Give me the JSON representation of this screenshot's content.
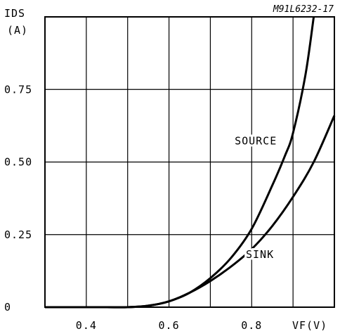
{
  "chart_data": {
    "type": "line",
    "ref_code": "M91L6232-17",
    "ylabel_line1": "IDS",
    "ylabel_line2": "(A)",
    "xlabel": "VF(V)",
    "xlim": [
      0.3,
      1.0
    ],
    "ylim": [
      0,
      1.0
    ],
    "x_gridlines": [
      0.4,
      0.5,
      0.6,
      0.7,
      0.8,
      0.9
    ],
    "y_gridlines": [
      0.25,
      0.5,
      0.75
    ],
    "x_ticks": [
      {
        "value": 0.4,
        "label": "0.4"
      },
      {
        "value": 0.6,
        "label": "0.6"
      },
      {
        "value": 0.8,
        "label": "0.8"
      }
    ],
    "y_ticks": [
      {
        "value": 0,
        "label": "0"
      },
      {
        "value": 0.25,
        "label": "0.25"
      },
      {
        "value": 0.5,
        "label": "0.50"
      },
      {
        "value": 0.75,
        "label": "0.75"
      }
    ],
    "series": [
      {
        "name": "SOURCE",
        "x": [
          0.3,
          0.4,
          0.45,
          0.5,
          0.55,
          0.6,
          0.65,
          0.7,
          0.75,
          0.8,
          0.85,
          0.88,
          0.9,
          0.93,
          0.95
        ],
        "y": [
          0.0,
          0.0,
          0.0,
          0.0,
          0.005,
          0.02,
          0.05,
          0.1,
          0.17,
          0.27,
          0.42,
          0.52,
          0.6,
          0.8,
          1.0
        ]
      },
      {
        "name": "SINK",
        "x": [
          0.3,
          0.4,
          0.45,
          0.5,
          0.55,
          0.6,
          0.65,
          0.7,
          0.75,
          0.8,
          0.85,
          0.9,
          0.95,
          1.0
        ],
        "y": [
          0.0,
          0.0,
          0.0,
          0.0,
          0.005,
          0.02,
          0.05,
          0.09,
          0.14,
          0.2,
          0.28,
          0.38,
          0.5,
          0.66
        ]
      }
    ],
    "annotations": [
      {
        "text": "SOURCE",
        "x": 0.81,
        "y": 0.56
      },
      {
        "text": "SINK",
        "x": 0.82,
        "y": 0.17
      }
    ]
  }
}
